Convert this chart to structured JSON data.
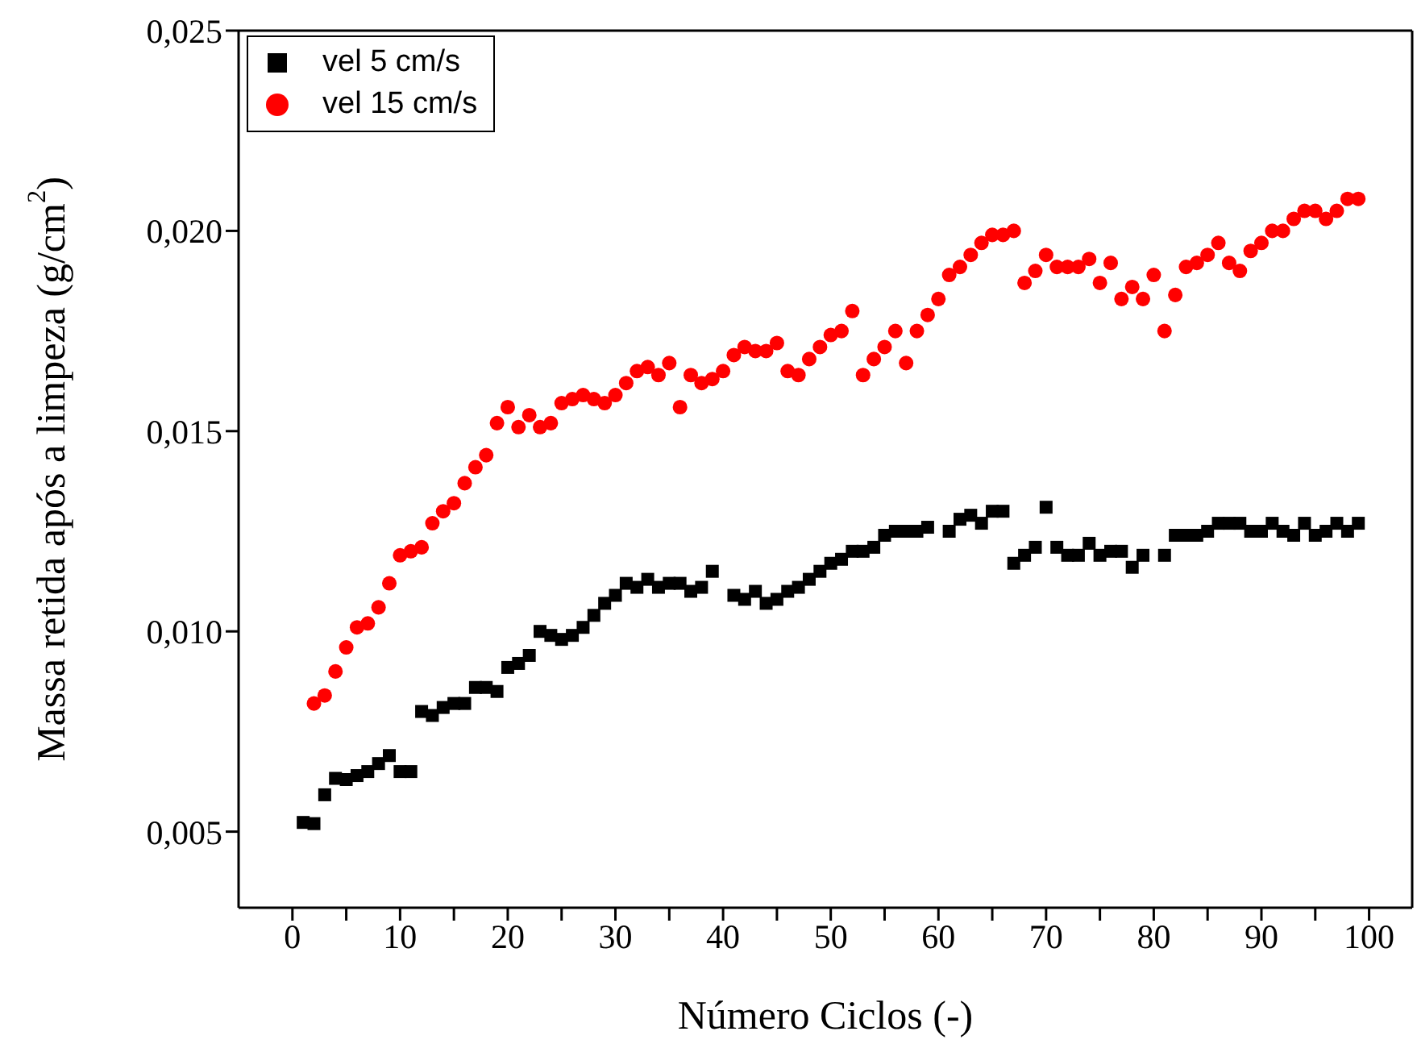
{
  "chart_data": {
    "type": "scatter",
    "xlabel": "Número Ciclos (-)",
    "ylabel": "Massa retida após a limpeza (g/cm$^{2}$)",
    "xlim": [
      -5,
      104
    ],
    "ylim": [
      0.0031,
      0.025
    ],
    "xticks": [
      0,
      {
        "value": 5,
        "label": null
      },
      10,
      {
        "value": 15,
        "label": null
      },
      20,
      {
        "value": 25,
        "label": null
      },
      30,
      {
        "value": 35,
        "label": null
      },
      40,
      {
        "value": 45,
        "label": null
      },
      50,
      {
        "value": 55,
        "label": null
      },
      60,
      {
        "value": 65,
        "label": null
      },
      70,
      {
        "value": 75,
        "label": null
      },
      80,
      {
        "value": 85,
        "label": null
      },
      90,
      {
        "value": 95,
        "label": null
      },
      100
    ],
    "yticks": [
      {
        "value": 0.005,
        "label": "0,005"
      },
      {
        "value": 0.01,
        "label": "0,010"
      },
      {
        "value": 0.015,
        "label": "0,015"
      },
      {
        "value": 0.02,
        "label": "0,020"
      },
      {
        "value": 0.025,
        "label": "0,025"
      }
    ],
    "legend": "top left",
    "grid": false,
    "series": [
      {
        "name": "vel 5 cm/s",
        "color": "#000000",
        "marker": "square",
        "x": [
          1,
          2,
          3,
          4,
          5,
          6,
          7,
          8,
          9,
          10,
          11,
          12,
          13,
          14,
          15,
          16,
          17,
          18,
          19,
          20,
          21,
          22,
          23,
          24,
          25,
          26,
          27,
          28,
          29,
          30,
          31,
          32,
          33,
          34,
          35,
          36,
          37,
          38,
          39,
          41,
          42,
          43,
          44,
          45,
          46,
          47,
          48,
          49,
          50,
          51,
          52,
          53,
          54,
          55,
          56,
          57,
          58,
          59,
          61,
          62,
          63,
          64,
          65,
          66,
          67,
          68,
          69,
          70,
          71,
          72,
          73,
          74,
          75,
          76,
          77,
          78,
          79,
          81,
          82,
          83,
          84,
          85,
          86,
          87,
          88,
          89,
          90,
          91,
          92,
          93,
          94,
          95,
          96,
          97,
          98,
          99
        ],
        "values": [
          0.00523,
          0.0052,
          0.00592,
          0.00633,
          0.0063,
          0.0064,
          0.0065,
          0.0067,
          0.0069,
          0.0065,
          0.0065,
          0.008,
          0.0079,
          0.0081,
          0.0082,
          0.0082,
          0.0086,
          0.0086,
          0.0085,
          0.0091,
          0.0092,
          0.0094,
          0.01,
          0.0099,
          0.0098,
          0.0099,
          0.0101,
          0.0104,
          0.0107,
          0.0109,
          0.0112,
          0.0111,
          0.0113,
          0.0111,
          0.0112,
          0.0112,
          0.011,
          0.0111,
          0.0115,
          0.0109,
          0.0108,
          0.011,
          0.0107,
          0.0108,
          0.011,
          0.0111,
          0.0113,
          0.0115,
          0.0117,
          0.0118,
          0.012,
          0.012,
          0.0121,
          0.0124,
          0.0125,
          0.0125,
          0.0125,
          0.0126,
          0.0125,
          0.0128,
          0.0129,
          0.0127,
          0.013,
          0.013,
          0.0117,
          0.0119,
          0.0121,
          0.0131,
          0.0121,
          0.0119,
          0.0119,
          0.0122,
          0.0119,
          0.012,
          0.012,
          0.0116,
          0.0119,
          0.0119,
          0.0124,
          0.0124,
          0.0124,
          0.0125,
          0.0127,
          0.0127,
          0.0127,
          0.0125,
          0.0125,
          0.0127,
          0.0125,
          0.0124,
          0.0127,
          0.0124,
          0.0125,
          0.0127,
          0.0125,
          0.0127
        ]
      },
      {
        "name": "vel 15 cm/s",
        "color": "#ff0000",
        "marker": "circle",
        "x": [
          2,
          3,
          4,
          5,
          6,
          7,
          8,
          9,
          10,
          11,
          12,
          13,
          14,
          15,
          16,
          17,
          18,
          19,
          20,
          21,
          22,
          23,
          24,
          25,
          26,
          27,
          28,
          29,
          30,
          31,
          32,
          33,
          34,
          35,
          36,
          37,
          38,
          39,
          40,
          41,
          42,
          43,
          44,
          45,
          46,
          47,
          48,
          49,
          50,
          51,
          52,
          53,
          54,
          55,
          56,
          57,
          58,
          59,
          60,
          61,
          62,
          63,
          64,
          65,
          66,
          67,
          68,
          69,
          70,
          71,
          72,
          73,
          74,
          75,
          76,
          77,
          78,
          79,
          80,
          81,
          82,
          83,
          84,
          85,
          86,
          87,
          88,
          89,
          90,
          91,
          92,
          93,
          94,
          95,
          96,
          97,
          98,
          99
        ],
        "values": [
          0.0082,
          0.0084,
          0.009,
          0.0096,
          0.0101,
          0.0102,
          0.0106,
          0.0112,
          0.0119,
          0.012,
          0.0121,
          0.0127,
          0.013,
          0.0132,
          0.0137,
          0.0141,
          0.0144,
          0.0152,
          0.0156,
          0.0151,
          0.0154,
          0.0151,
          0.0152,
          0.0157,
          0.0158,
          0.0159,
          0.0158,
          0.0157,
          0.0159,
          0.0162,
          0.0165,
          0.0166,
          0.0164,
          0.0167,
          0.0156,
          0.0164,
          0.0162,
          0.0163,
          0.0165,
          0.0169,
          0.0171,
          0.017,
          0.017,
          0.0172,
          0.0165,
          0.0164,
          0.0168,
          0.0171,
          0.0174,
          0.0175,
          0.018,
          0.0164,
          0.0168,
          0.0171,
          0.0175,
          0.0167,
          0.0175,
          0.0179,
          0.0183,
          0.0189,
          0.0191,
          0.0194,
          0.0197,
          0.0199,
          0.0199,
          0.02,
          0.0187,
          0.019,
          0.0194,
          0.0191,
          0.0191,
          0.0191,
          0.0193,
          0.0187,
          0.0192,
          0.0183,
          0.0186,
          0.0183,
          0.0189,
          0.0175,
          0.0184,
          0.0191,
          0.0192,
          0.0194,
          0.0197,
          0.0192,
          0.019,
          0.0195,
          0.0197,
          0.02,
          0.02,
          0.0203,
          0.0205,
          0.0205,
          0.0203,
          0.0205,
          0.0208,
          0.0208
        ]
      }
    ]
  }
}
